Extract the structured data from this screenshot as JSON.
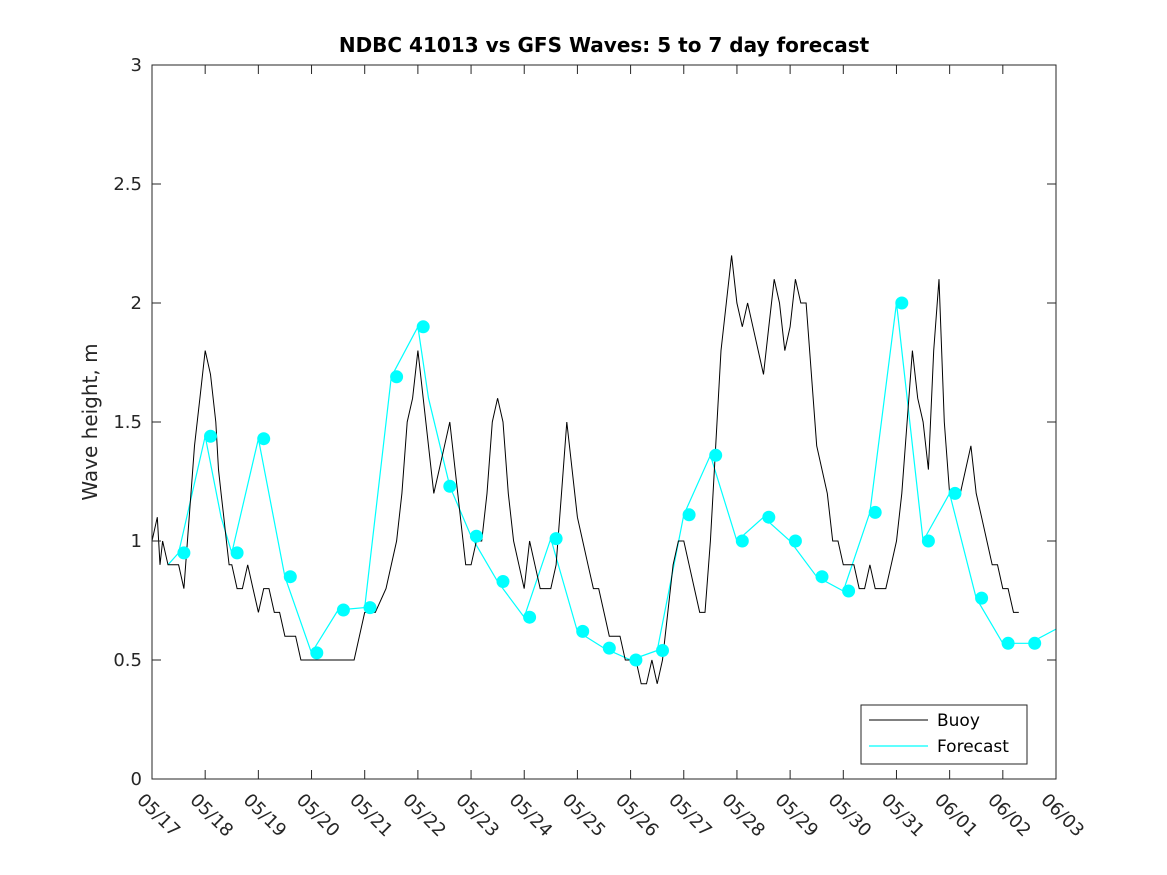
{
  "chart_data": {
    "type": "line",
    "title": "NDBC 41013 vs GFS Waves: 5 to 7 day forecast",
    "xlabel": "",
    "ylabel": "Wave height, m",
    "xlim": [
      "05/17",
      "06/03"
    ],
    "ylim": [
      0,
      3
    ],
    "yticks": [
      0,
      0.5,
      1,
      1.5,
      2,
      2.5,
      3
    ],
    "ytick_labels": [
      "0",
      "0.5",
      "1",
      "1.5",
      "2",
      "2.5",
      "3"
    ],
    "xticks": [
      "05/17",
      "05/18",
      "05/19",
      "05/20",
      "05/21",
      "05/22",
      "05/23",
      "05/24",
      "05/25",
      "05/26",
      "05/27",
      "05/28",
      "05/29",
      "05/30",
      "05/31",
      "06/01",
      "06/02",
      "06/03"
    ],
    "grid": false,
    "legend": {
      "position": "bottom-right",
      "entries": [
        "Buoy",
        "Forecast"
      ]
    },
    "series": [
      {
        "name": "Buoy",
        "color": "#000000",
        "x_days": [
          0.0,
          0.1,
          0.15,
          0.2,
          0.3,
          0.5,
          0.6,
          0.7,
          0.8,
          0.9,
          1.0,
          1.1,
          1.2,
          1.25,
          1.3,
          1.35,
          1.4,
          1.45,
          1.5,
          1.6,
          1.7,
          1.8,
          1.9,
          2.0,
          2.1,
          2.2,
          2.3,
          2.4,
          2.5,
          2.6,
          2.7,
          2.8,
          2.9,
          3.0,
          3.1,
          3.2,
          3.3,
          3.4,
          3.6,
          3.8,
          4.0,
          4.2,
          4.4,
          4.6,
          4.7,
          4.8,
          4.9,
          5.0,
          5.1,
          5.2,
          5.3,
          5.4,
          5.5,
          5.6,
          5.7,
          5.8,
          5.9,
          6.0,
          6.1,
          6.2,
          6.3,
          6.4,
          6.5,
          6.6,
          6.7,
          6.8,
          6.9,
          7.0,
          7.1,
          7.2,
          7.3,
          7.4,
          7.5,
          7.6,
          7.7,
          7.8,
          7.9,
          8.0,
          8.1,
          8.2,
          8.3,
          8.4,
          8.5,
          8.6,
          8.7,
          8.8,
          8.9,
          9.0,
          9.1,
          9.2,
          9.3,
          9.4,
          9.5,
          9.6,
          9.7,
          9.8,
          9.9,
          10.0,
          10.1,
          10.2,
          10.3,
          10.4,
          10.5,
          10.6,
          10.7,
          10.8,
          10.9,
          11.0,
          11.1,
          11.2,
          11.3,
          11.4,
          11.5,
          11.6,
          11.7,
          11.8,
          11.9,
          12.0,
          12.1,
          12.2,
          12.3,
          12.4,
          12.5,
          12.6,
          12.7,
          12.8,
          12.9,
          13.0,
          13.1,
          13.2,
          13.3,
          13.4,
          13.5,
          13.6,
          13.7,
          13.8,
          13.9,
          14.0,
          14.1,
          14.2,
          14.3,
          14.4,
          14.5,
          14.6,
          14.7,
          14.8,
          14.9,
          15.0,
          15.1,
          15.2,
          15.3,
          15.4,
          15.5,
          15.6,
          15.7,
          15.8,
          15.9,
          16.0,
          16.1,
          16.2,
          16.3
        ],
        "values": [
          1.0,
          1.1,
          0.9,
          1.0,
          0.9,
          0.9,
          0.8,
          1.1,
          1.4,
          1.6,
          1.8,
          1.7,
          1.5,
          1.3,
          1.2,
          1.1,
          1.0,
          0.9,
          0.9,
          0.8,
          0.8,
          0.9,
          0.8,
          0.7,
          0.8,
          0.8,
          0.7,
          0.7,
          0.6,
          0.6,
          0.6,
          0.5,
          0.5,
          0.5,
          0.5,
          0.5,
          0.5,
          0.5,
          0.5,
          0.5,
          0.7,
          0.7,
          0.8,
          1.0,
          1.2,
          1.5,
          1.6,
          1.8,
          1.6,
          1.4,
          1.2,
          1.3,
          1.4,
          1.5,
          1.3,
          1.1,
          0.9,
          0.9,
          1.0,
          1.0,
          1.2,
          1.5,
          1.6,
          1.5,
          1.2,
          1.0,
          0.9,
          0.8,
          1.0,
          0.9,
          0.8,
          0.8,
          0.8,
          0.9,
          1.2,
          1.5,
          1.3,
          1.1,
          1.0,
          0.9,
          0.8,
          0.8,
          0.7,
          0.6,
          0.6,
          0.6,
          0.5,
          0.5,
          0.5,
          0.4,
          0.4,
          0.5,
          0.4,
          0.5,
          0.7,
          0.9,
          1.0,
          1.0,
          0.9,
          0.8,
          0.7,
          0.7,
          1.0,
          1.4,
          1.8,
          2.0,
          2.2,
          2.0,
          1.9,
          2.0,
          1.9,
          1.8,
          1.7,
          1.9,
          2.1,
          2.0,
          1.8,
          1.9,
          2.1,
          2.0,
          2.0,
          1.7,
          1.4,
          1.3,
          1.2,
          1.0,
          1.0,
          0.9,
          0.9,
          0.9,
          0.8,
          0.8,
          0.9,
          0.8,
          0.8,
          0.8,
          0.9,
          1.0,
          1.2,
          1.5,
          1.8,
          1.6,
          1.5,
          1.3,
          1.8,
          2.1,
          1.5,
          1.2,
          1.2,
          1.2,
          1.3,
          1.4,
          1.2,
          1.1,
          1.0,
          0.9,
          0.9,
          0.8,
          0.8,
          0.7,
          0.7
        ]
      },
      {
        "name": "Forecast",
        "color": "#00ffff",
        "x_days": [
          0.3,
          0.5,
          1.0,
          1.3,
          1.5,
          2.0,
          2.5,
          3.0,
          3.5,
          4.0,
          4.5,
          5.0,
          5.2,
          5.6,
          6.0,
          6.5,
          7.0,
          7.5,
          8.0,
          8.5,
          9.0,
          9.5,
          10.0,
          10.5,
          11.0,
          11.5,
          12.0,
          12.5,
          13.0,
          13.5,
          14.0,
          14.5,
          15.0,
          15.5,
          16.0,
          16.5,
          17.0
        ],
        "values": [
          0.9,
          0.95,
          1.44,
          1.1,
          0.95,
          1.43,
          0.85,
          0.53,
          0.71,
          0.72,
          1.69,
          1.9,
          1.6,
          1.23,
          1.02,
          0.83,
          0.68,
          1.01,
          0.62,
          0.55,
          0.5,
          0.54,
          1.11,
          1.36,
          1.0,
          1.1,
          1.0,
          0.85,
          0.79,
          1.12,
          2.0,
          1.0,
          1.2,
          0.76,
          0.57,
          0.57,
          0.63
        ]
      }
    ],
    "forecast_markers": {
      "x_days": [
        0.6,
        1.1,
        1.6,
        2.1,
        2.6,
        3.1,
        3.6,
        4.1,
        4.6,
        5.1,
        5.6,
        6.1,
        6.6,
        7.1,
        7.6,
        8.1,
        8.6,
        9.1,
        9.6,
        10.1,
        10.6,
        11.1,
        11.6,
        12.1,
        12.6,
        13.1,
        13.6,
        14.1,
        14.6,
        15.1,
        15.6,
        16.1,
        16.6
      ],
      "values": [
        0.95,
        1.44,
        0.95,
        1.43,
        0.85,
        0.53,
        0.71,
        0.72,
        1.69,
        1.9,
        1.23,
        1.02,
        0.83,
        0.68,
        1.01,
        0.62,
        0.55,
        0.5,
        0.54,
        1.11,
        1.36,
        1.0,
        1.1,
        1.0,
        0.85,
        0.79,
        1.12,
        2.0,
        1.0,
        1.2,
        0.76,
        0.57,
        0.57
      ]
    }
  }
}
